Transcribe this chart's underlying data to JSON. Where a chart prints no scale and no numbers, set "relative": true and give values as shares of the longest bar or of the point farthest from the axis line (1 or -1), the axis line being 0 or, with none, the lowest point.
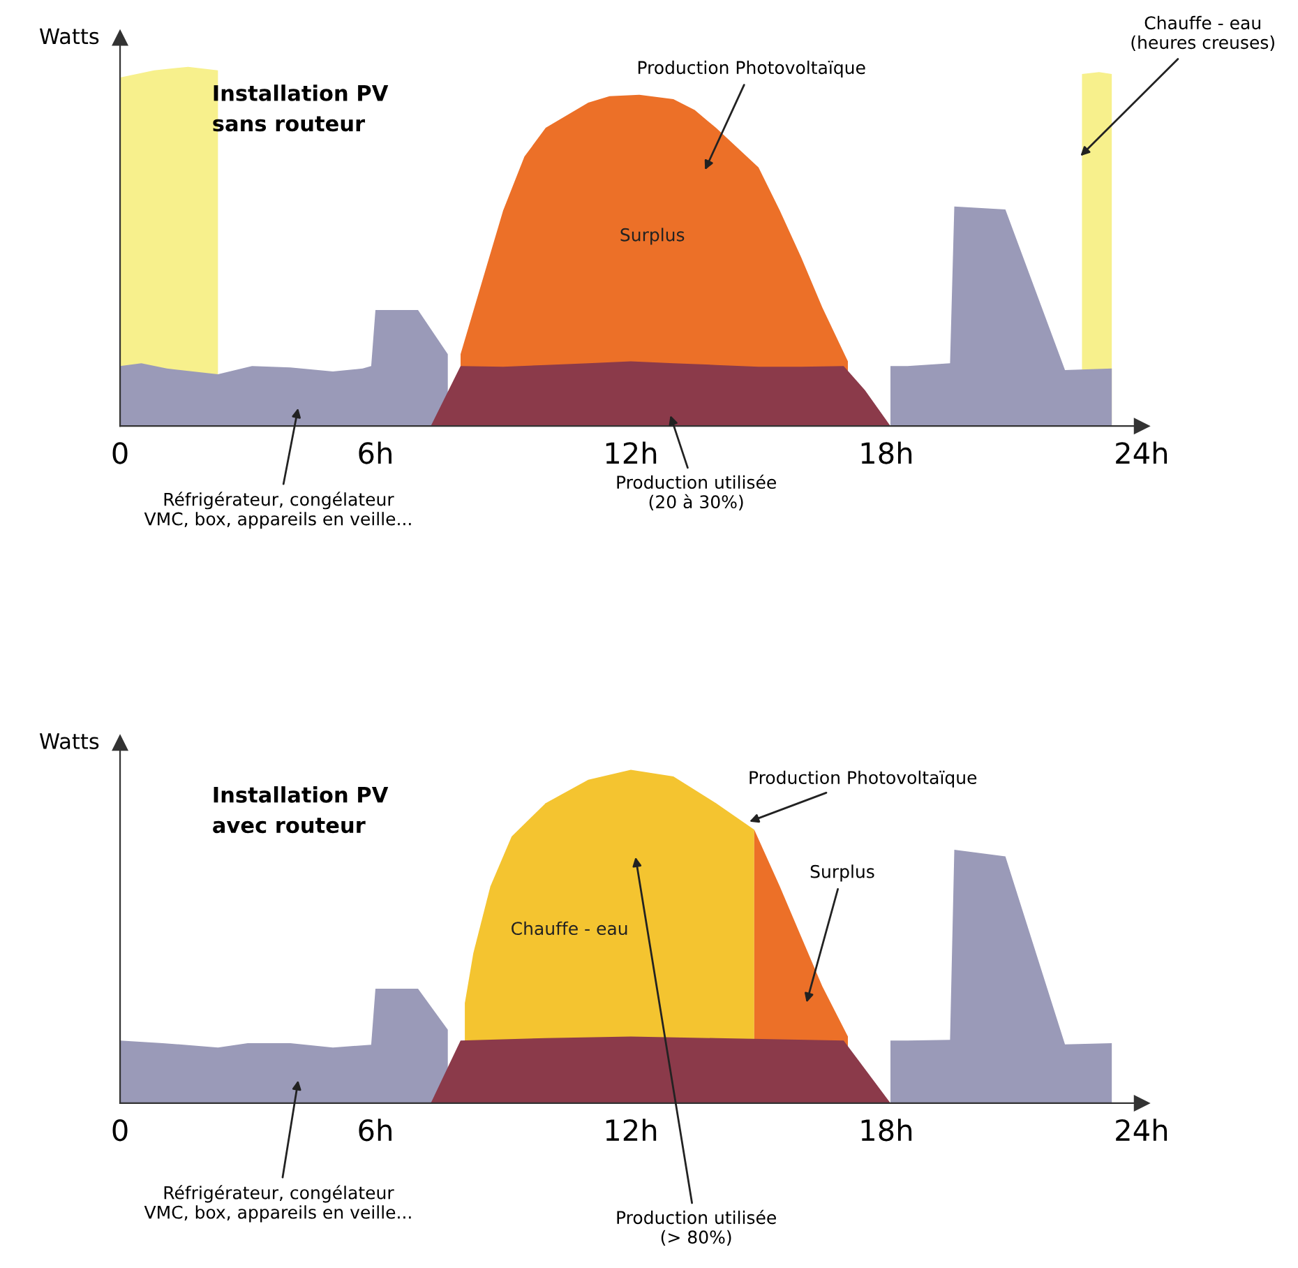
{
  "chart_data": [
    {
      "type": "area",
      "title": "Installation PV\nsans routeur",
      "ylabel": "Watts",
      "relative": true,
      "xlim": [
        0,
        24
      ],
      "xticks": [
        0,
        {
          "value": 6,
          "label": "6h"
        },
        {
          "value": 12,
          "label": "12h"
        },
        {
          "value": 18,
          "label": "18h"
        },
        {
          "value": 24,
          "label": "24h"
        }
      ],
      "series": [
        {
          "color": "#f7f08c",
          "x": [
            0,
            0,
            0.8,
            1.6,
            2.3,
            2.3
          ],
          "values": [
            0,
            0.97,
            0.99,
            1,
            0.99,
            0
          ]
        },
        {
          "color": "#f7f08c",
          "x": [
            22.6,
            22.6,
            23,
            23.3,
            23.3
          ],
          "values": [
            0,
            0.98,
            0.985,
            0.98,
            0
          ]
        },
        {
          "color": "#ec7028",
          "x": [
            8,
            8.5,
            9,
            9.5,
            10,
            11,
            11.5,
            12.2,
            13,
            13.5,
            14,
            15,
            15.5,
            16,
            16.5,
            17.1
          ],
          "values": [
            0.2,
            0.4,
            0.6,
            0.75,
            0.83,
            0.9,
            0.918,
            0.922,
            0.91,
            0.88,
            0.83,
            0.72,
            0.6,
            0.47,
            0.33,
            0.18
          ]
        },
        {
          "color": "#9a9ab8",
          "x": [
            0,
            0.5,
            1.1,
            2.3,
            3.1,
            4,
            5,
            5.7,
            5.9,
            6,
            7,
            7.7
          ],
          "values": [
            0.167,
            0.175,
            0.16,
            0.144,
            0.167,
            0.163,
            0.152,
            0.16,
            0.167,
            0.323,
            0.323,
            0.2
          ]
        },
        {
          "color": "#9a9ab8",
          "x": [
            18.1,
            18.5,
            19.5,
            19.6,
            20.8,
            22.2,
            23.3
          ],
          "values": [
            0.167,
            0.167,
            0.175,
            0.611,
            0.603,
            0.156,
            0.16
          ]
        },
        {
          "color": "#8b3a4a",
          "x": [
            7.3,
            8,
            9,
            10,
            11,
            12,
            13,
            14,
            15,
            16,
            17,
            17.5,
            18.1
          ],
          "values": [
            0,
            0.167,
            0.165,
            0.17,
            0.175,
            0.18,
            0.175,
            0.17,
            0.165,
            0.165,
            0.167,
            0.1,
            0
          ]
        }
      ],
      "annotations": [
        "Production Photovoltaïque",
        "Surplus",
        "Chauffe - eau\n(heures creuses)",
        "Réfrigérateur, congélateur\nVMC, box, appareils en veille...",
        "Production utilisée\n(20 à 30%)"
      ]
    },
    {
      "type": "area",
      "title": "Installation PV\navec routeur",
      "ylabel": "Watts",
      "relative": true,
      "xlim": [
        0,
        24
      ],
      "xticks": [
        0,
        {
          "value": 6,
          "label": "6h"
        },
        {
          "value": 12,
          "label": "12h"
        },
        {
          "value": 18,
          "label": "18h"
        },
        {
          "value": 24,
          "label": "24h"
        }
      ],
      "series": [
        {
          "color": "#f4c430",
          "x": [
            8.1,
            8.3,
            8.7,
            9.2,
            10,
            11,
            12,
            13,
            14,
            14.9,
            14.9
          ],
          "values": [
            0.3,
            0.45,
            0.65,
            0.8,
            0.9,
            0.97,
            1,
            0.98,
            0.9,
            0.82,
            0
          ]
        },
        {
          "color": "#ec7028",
          "x": [
            14.9,
            14.9,
            15.5,
            16,
            16.5,
            17.1
          ],
          "values": [
            0,
            0.82,
            0.65,
            0.5,
            0.35,
            0.2
          ]
        },
        {
          "color": "#9a9ab8",
          "x": [
            0,
            1,
            2.3,
            3,
            4,
            5,
            5.9,
            6,
            7,
            7.7
          ],
          "values": [
            0.188,
            0.18,
            0.167,
            0.18,
            0.18,
            0.167,
            0.175,
            0.343,
            0.343,
            0.22
          ]
        },
        {
          "color": "#9a9ab8",
          "x": [
            18.1,
            18.5,
            19.5,
            19.6,
            20.8,
            22.2,
            23.3
          ],
          "values": [
            0.188,
            0.188,
            0.19,
            0.76,
            0.74,
            0.176,
            0.18
          ]
        },
        {
          "color": "#8b3a4a",
          "x": [
            7.3,
            8,
            10,
            12,
            14,
            17,
            18.1
          ],
          "values": [
            0,
            0.188,
            0.195,
            0.2,
            0.195,
            0.188,
            0
          ]
        }
      ],
      "annotations": [
        "Production Photovoltaïque",
        "Chauffe - eau",
        "Surplus",
        "Réfrigérateur, congélateur\nVMC, box, appareils en veille...",
        "Production utilisée\n(> 80%)"
      ]
    }
  ]
}
